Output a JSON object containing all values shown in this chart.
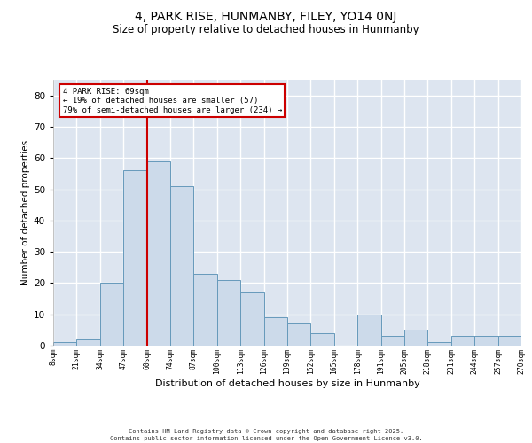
{
  "title": "4, PARK RISE, HUNMANBY, FILEY, YO14 0NJ",
  "subtitle": "Size of property relative to detached houses in Hunmanby",
  "xlabel": "Distribution of detached houses by size in Hunmanby",
  "ylabel": "Number of detached properties",
  "bar_color": "#ccdaea",
  "bar_edge_color": "#6699bb",
  "background_color": "#dde5f0",
  "grid_color": "#ffffff",
  "annotation_text": "4 PARK RISE: 69sqm\n← 19% of detached houses are smaller (57)\n79% of semi-detached houses are larger (234) →",
  "vline_x": 4.0,
  "vline_color": "#cc0000",
  "tick_labels": [
    "8sqm",
    "21sqm",
    "34sqm",
    "47sqm",
    "60sqm",
    "74sqm",
    "87sqm",
    "100sqm",
    "113sqm",
    "126sqm",
    "139sqm",
    "152sqm",
    "165sqm",
    "178sqm",
    "191sqm",
    "205sqm",
    "218sqm",
    "231sqm",
    "244sqm",
    "257sqm",
    "270sqm"
  ],
  "values": [
    1,
    2,
    20,
    56,
    59,
    51,
    23,
    21,
    17,
    9,
    7,
    4,
    0,
    10,
    3,
    5,
    1,
    3,
    3,
    3
  ],
  "ylim": [
    0,
    85
  ],
  "yticks": [
    0,
    10,
    20,
    30,
    40,
    50,
    60,
    70,
    80
  ],
  "footer_line1": "Contains HM Land Registry data © Crown copyright and database right 2025.",
  "footer_line2": "Contains public sector information licensed under the Open Government Licence v3.0."
}
